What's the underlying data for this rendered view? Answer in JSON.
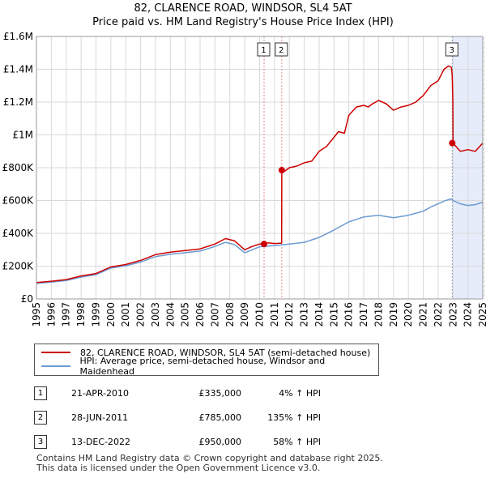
{
  "header": {
    "title": "82, CLARENCE ROAD, WINDSOR, SL4 5AT",
    "subtitle": "Price paid vs. HM Land Registry's House Price Index (HPI)"
  },
  "chart_data": {
    "type": "line",
    "xlim": [
      1995,
      2025
    ],
    "ylim": [
      0,
      1600000
    ],
    "yticks": [
      0,
      200000,
      400000,
      600000,
      800000,
      1000000,
      1200000,
      1400000,
      1600000
    ],
    "ytick_labels": [
      "£0",
      "£200K",
      "£400K",
      "£600K",
      "£800K",
      "£1M",
      "£1.2M",
      "£1.4M",
      "£1.6M"
    ],
    "xticks": [
      1995,
      1996,
      1997,
      1998,
      1999,
      2000,
      2001,
      2002,
      2003,
      2004,
      2005,
      2006,
      2007,
      2008,
      2009,
      2010,
      2011,
      2012,
      2013,
      2014,
      2015,
      2016,
      2017,
      2018,
      2019,
      2020,
      2021,
      2022,
      2023,
      2024,
      2025
    ],
    "grid": true,
    "series": [
      {
        "name": "82, CLARENCE ROAD, WINDSOR, SL4 5AT (semi-detached house)",
        "color": "#cc0000",
        "x": [
          1995.0,
          1996.0,
          1997.0,
          1998.0,
          1999.0,
          2000.0,
          2001.0,
          2002.0,
          2003.0,
          2004.0,
          2005.0,
          2006.0,
          2007.0,
          2007.7,
          2008.3,
          2009.0,
          2009.5,
          2010.0,
          2010.3,
          2010.6,
          2011.0,
          2011.48,
          2011.49,
          2011.7,
          2012.0,
          2012.5,
          2013.0,
          2013.5,
          2014.0,
          2014.5,
          2015.0,
          2015.3,
          2015.7,
          2016.0,
          2016.5,
          2017.0,
          2017.3,
          2017.6,
          2018.0,
          2018.5,
          2019.0,
          2019.5,
          2020.0,
          2020.5,
          2021.0,
          2021.5,
          2022.0,
          2022.4,
          2022.7,
          2022.9,
          2022.95,
          2022.99,
          2023.0,
          2023.2,
          2023.5,
          2024.0,
          2024.5,
          2025.0
        ],
        "values": [
          100000,
          108000,
          118000,
          140000,
          155000,
          195000,
          210000,
          235000,
          270000,
          285000,
          295000,
          305000,
          335000,
          368000,
          355000,
          300000,
          320000,
          335000,
          338000,
          342000,
          338000,
          340000,
          785000,
          780000,
          800000,
          810000,
          830000,
          840000,
          900000,
          930000,
          985000,
          1020000,
          1010000,
          1120000,
          1170000,
          1180000,
          1170000,
          1190000,
          1210000,
          1190000,
          1150000,
          1170000,
          1180000,
          1200000,
          1240000,
          1300000,
          1330000,
          1400000,
          1420000,
          1410000,
          1360000,
          1200000,
          950000,
          930000,
          900000,
          910000,
          900000,
          950000
        ]
      },
      {
        "name": "HPI: Average price, semi-detached house, Windsor and Maidenhead",
        "color": "#6b9bd1",
        "x": [
          1995.0,
          1996.0,
          1997.0,
          1998.0,
          1999.0,
          2000.0,
          2001.0,
          2002.0,
          2003.0,
          2004.0,
          2005.0,
          2006.0,
          2007.0,
          2007.7,
          2008.3,
          2009.0,
          2009.5,
          2010.0,
          2010.5,
          2011.0,
          2011.5,
          2012.0,
          2013.0,
          2014.0,
          2015.0,
          2016.0,
          2017.0,
          2018.0,
          2019.0,
          2020.0,
          2021.0,
          2021.5,
          2022.0,
          2022.5,
          2022.9,
          2023.0,
          2023.5,
          2024.0,
          2024.5,
          2025.0
        ],
        "values": [
          95000,
          102000,
          112000,
          133000,
          148000,
          188000,
          202000,
          225000,
          258000,
          272000,
          282000,
          292000,
          320000,
          345000,
          332000,
          282000,
          300000,
          318000,
          322000,
          325000,
          330000,
          335000,
          345000,
          375000,
          420000,
          470000,
          500000,
          510000,
          495000,
          510000,
          535000,
          560000,
          580000,
          600000,
          610000,
          600000,
          580000,
          570000,
          575000,
          590000
        ]
      }
    ],
    "markers": [
      {
        "label": "1",
        "x": 2010.3,
        "y": 335000
      },
      {
        "label": "2",
        "x": 2011.49,
        "y": 785000
      },
      {
        "label": "3",
        "x": 2022.95,
        "y": 950000
      }
    ],
    "hatched_region": [
      2025.0,
      2025.2
    ],
    "shaded_region": [
      2022.95,
      2025.0
    ]
  },
  "legend": {
    "items": [
      {
        "label": "82, CLARENCE ROAD, WINDSOR, SL4 5AT (semi-detached house)",
        "color": "#cc0000"
      },
      {
        "label": "HPI: Average price, semi-detached house, Windsor and Maidenhead",
        "color": "#6b9bd1"
      }
    ]
  },
  "sales": [
    {
      "num": "1",
      "date": "21-APR-2010",
      "price": "£335,000",
      "hpi": "4% ↑ HPI"
    },
    {
      "num": "2",
      "date": "28-JUN-2011",
      "price": "£785,000",
      "hpi": "135% ↑ HPI"
    },
    {
      "num": "3",
      "date": "13-DEC-2022",
      "price": "£950,000",
      "hpi": "58% ↑ HPI"
    }
  ],
  "footer": {
    "line1": "Contains HM Land Registry data © Crown copyright and database right 2025.",
    "line2": "This data is licensed under the Open Government Licence v3.0."
  }
}
